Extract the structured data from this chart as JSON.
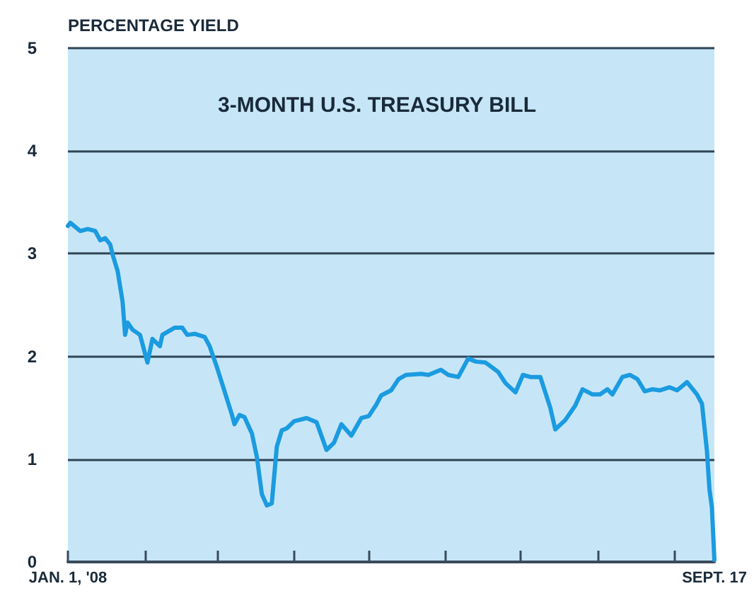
{
  "chart_data": {
    "type": "line",
    "title": "3-MONTH U.S. TREASURY BILL",
    "ylabel": "PERCENTAGE YIELD",
    "x": [
      "2008-01-01",
      "2008-01-02",
      "2008-01-06",
      "2008-01-09",
      "2008-01-12",
      "2008-01-14",
      "2008-01-16",
      "2008-01-18",
      "2008-01-19",
      "2008-01-21",
      "2008-01-23",
      "2008-01-24",
      "2008-01-25",
      "2008-01-27",
      "2008-01-30",
      "2008-02-02",
      "2008-02-04",
      "2008-02-07",
      "2008-02-08",
      "2008-02-13",
      "2008-02-16",
      "2008-02-18",
      "2008-02-21",
      "2008-02-25",
      "2008-02-27",
      "2008-03-01",
      "2008-03-04",
      "2008-03-07",
      "2008-03-08",
      "2008-03-10",
      "2008-03-12",
      "2008-03-15",
      "2008-03-17",
      "2008-03-19",
      "2008-03-21",
      "2008-03-23",
      "2008-03-25",
      "2008-03-27",
      "2008-03-29",
      "2008-04-01",
      "2008-04-06",
      "2008-04-10",
      "2008-04-14",
      "2008-04-17",
      "2008-04-20",
      "2008-04-24",
      "2008-04-28",
      "2008-05-01",
      "2008-05-04",
      "2008-05-06",
      "2008-05-10",
      "2008-05-13",
      "2008-05-16",
      "2008-05-22",
      "2008-05-25",
      "2008-05-30",
      "2008-06-02",
      "2008-06-06",
      "2008-06-10",
      "2008-06-13",
      "2008-06-17",
      "2008-06-22",
      "2008-06-25",
      "2008-06-29",
      "2008-07-02",
      "2008-07-05",
      "2008-07-09",
      "2008-07-13",
      "2008-07-15",
      "2008-07-19",
      "2008-07-23",
      "2008-07-26",
      "2008-07-30",
      "2008-08-02",
      "2008-08-05",
      "2008-08-07",
      "2008-08-11",
      "2008-08-14",
      "2008-08-17",
      "2008-08-20",
      "2008-08-23",
      "2008-08-26",
      "2008-08-30",
      "2008-09-02",
      "2008-09-06",
      "2008-09-10",
      "2008-09-12",
      "2008-09-14",
      "2008-09-15",
      "2008-09-16",
      "2008-09-17"
    ],
    "series": [
      {
        "color": "#1b9be0",
        "values": [
          3.27,
          3.3,
          3.22,
          3.24,
          3.22,
          3.13,
          3.15,
          3.09,
          2.99,
          2.83,
          2.53,
          2.21,
          2.33,
          2.26,
          2.21,
          1.94,
          2.17,
          2.1,
          2.21,
          2.28,
          2.28,
          2.21,
          2.22,
          2.19,
          2.1,
          1.89,
          1.66,
          1.43,
          1.34,
          1.43,
          1.41,
          1.25,
          1.02,
          0.66,
          0.55,
          0.57,
          1.12,
          1.28,
          1.3,
          1.37,
          1.4,
          1.36,
          1.09,
          1.16,
          1.34,
          1.23,
          1.4,
          1.42,
          1.53,
          1.62,
          1.67,
          1.78,
          1.82,
          1.83,
          1.82,
          1.87,
          1.82,
          1.8,
          1.98,
          1.95,
          1.94,
          1.85,
          1.74,
          1.65,
          1.82,
          1.8,
          1.8,
          1.5,
          1.29,
          1.38,
          1.52,
          1.68,
          1.63,
          1.63,
          1.68,
          1.63,
          1.8,
          1.82,
          1.78,
          1.66,
          1.68,
          1.67,
          1.7,
          1.67,
          1.75,
          1.63,
          1.54,
          1.08,
          0.71,
          0.53,
          0.02
        ]
      }
    ],
    "xlim": [
      "2008-01-01",
      "2008-09-17"
    ],
    "xticks": [
      {
        "value": "2008-01-01",
        "label": "JAN. 1, '08"
      },
      {
        "value": "2008-02-01",
        "label": null
      },
      {
        "value": "2008-03-01",
        "label": null
      },
      {
        "value": "2008-04-01",
        "label": null
      },
      {
        "value": "2008-05-01",
        "label": null
      },
      {
        "value": "2008-06-01",
        "label": null
      },
      {
        "value": "2008-07-01",
        "label": null
      },
      {
        "value": "2008-08-01",
        "label": null
      },
      {
        "value": "2008-09-01",
        "label": null
      },
      {
        "value": "2008-09-17",
        "label": "SEPT. 17"
      }
    ],
    "ylim": [
      0,
      5
    ],
    "yticks": [
      0,
      1,
      2,
      3,
      4,
      5
    ],
    "grid": "y",
    "marker": "none",
    "line_style": "solid"
  }
}
